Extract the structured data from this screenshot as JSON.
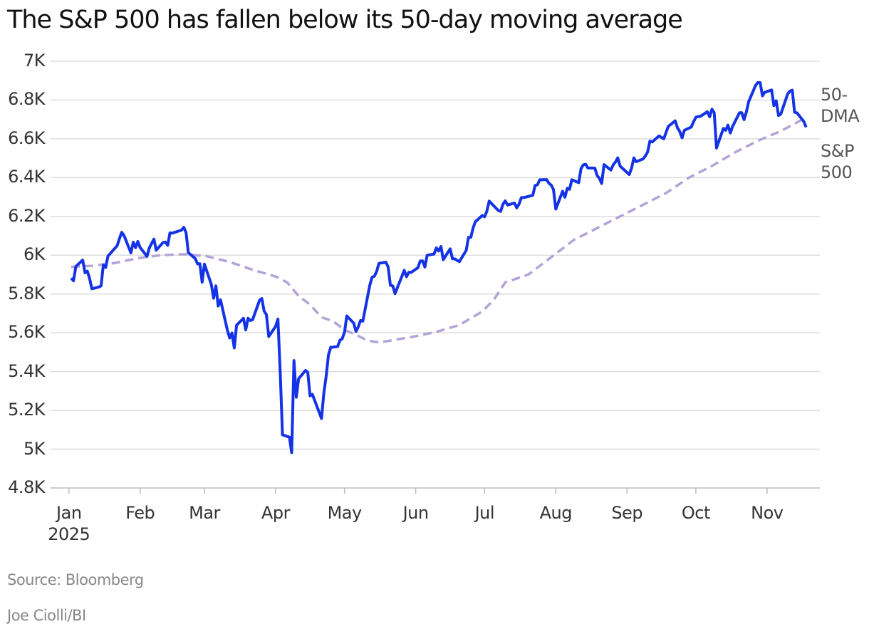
{
  "chart_data": {
    "type": "line",
    "title": "The S&P 500 has fallen below its 50-day moving average",
    "source": "Source: Bloomberg",
    "credit": "Joe Ciolli/BI",
    "xlim": [
      -8,
      327
    ],
    "xticks": [
      {
        "value": 0,
        "label": "Jan 2025"
      },
      {
        "value": 31,
        "label": "Feb"
      },
      {
        "value": 59,
        "label": "Mar"
      },
      {
        "value": 90,
        "label": "Apr"
      },
      {
        "value": 120,
        "label": "May"
      },
      {
        "value": 151,
        "label": "Jun"
      },
      {
        "value": 181,
        "label": "Jul"
      },
      {
        "value": 212,
        "label": "Aug"
      },
      {
        "value": 243,
        "label": "Sep"
      },
      {
        "value": 273,
        "label": "Oct"
      },
      {
        "value": 304,
        "label": "Nov"
      }
    ],
    "ylim": [
      4800,
      7000
    ],
    "yticks": [
      {
        "value": 4800,
        "label": "4.8K"
      },
      {
        "value": 5000,
        "label": "5K"
      },
      {
        "value": 5200,
        "label": "5.2K"
      },
      {
        "value": 5400,
        "label": "5.4K"
      },
      {
        "value": 5600,
        "label": "5.6K"
      },
      {
        "value": 5800,
        "label": "5.8K"
      },
      {
        "value": 6000,
        "label": "6K"
      },
      {
        "value": 6200,
        "label": "6.2K"
      },
      {
        "value": 6400,
        "label": "6.4K"
      },
      {
        "value": 6600,
        "label": "6.6K"
      },
      {
        "value": 6800,
        "label": "6.8K"
      },
      {
        "value": 7000,
        "label": "7K"
      }
    ],
    "grid": true,
    "series": [
      {
        "name": "50-DMA",
        "color": "#b3a3d6",
        "dashed": true,
        "x": [
          1,
          10,
          20,
          30,
          40,
          50,
          60,
          70,
          80,
          90,
          95,
          100,
          105,
          110,
          115,
          120,
          125,
          130,
          135,
          140,
          150,
          160,
          170,
          180,
          185,
          190,
          200,
          210,
          220,
          230,
          240,
          250,
          260,
          270,
          280,
          290,
          300,
          310,
          321
        ],
        "values": [
          5940,
          5945,
          5960,
          5985,
          6000,
          6005,
          5995,
          5965,
          5925,
          5890,
          5860,
          5790,
          5745,
          5680,
          5660,
          5615,
          5590,
          5560,
          5550,
          5560,
          5580,
          5605,
          5640,
          5710,
          5770,
          5860,
          5900,
          5990,
          6080,
          6140,
          6200,
          6260,
          6320,
          6400,
          6460,
          6530,
          6590,
          6640,
          6710
        ]
      },
      {
        "name": "S&P 500",
        "color": "#1432e6",
        "dashed": false,
        "x": [
          1,
          2,
          3,
          6,
          7,
          8,
          9,
          10,
          13,
          14,
          15,
          16,
          17,
          21,
          22,
          23,
          24,
          27,
          28,
          29,
          30,
          31,
          34,
          35,
          36,
          37,
          38,
          41,
          42,
          43,
          44,
          45,
          49,
          50,
          51,
          52,
          55,
          56,
          57,
          58,
          59,
          62,
          63,
          64,
          65,
          66,
          69,
          70,
          71,
          72,
          73,
          76,
          77,
          78,
          79,
          80,
          83,
          84,
          85,
          86,
          87,
          90,
          91,
          92,
          93,
          96,
          97,
          98,
          99,
          100,
          103,
          104,
          105,
          106,
          110,
          111,
          112,
          113,
          114,
          117,
          118,
          119,
          120,
          121,
          124,
          125,
          126,
          127,
          128,
          131,
          132,
          133,
          134,
          135,
          138,
          139,
          140,
          141,
          142,
          146,
          147,
          148,
          149,
          152,
          153,
          154,
          155,
          156,
          159,
          160,
          161,
          162,
          163,
          166,
          167,
          168,
          170,
          173,
          174,
          175,
          176,
          177,
          180,
          181,
          182,
          183,
          187,
          188,
          189,
          190,
          191,
          194,
          195,
          196,
          197,
          198,
          201,
          202,
          203,
          204,
          205,
          208,
          209,
          210,
          211,
          212,
          215,
          216,
          217,
          218,
          219,
          222,
          223,
          224,
          225,
          226,
          229,
          230,
          231,
          232,
          233,
          236,
          237,
          238,
          239,
          240,
          244,
          245,
          246,
          247,
          250,
          251,
          252,
          253,
          254,
          257,
          258,
          259,
          260,
          261,
          264,
          265,
          266,
          267,
          268,
          271,
          272,
          273,
          274,
          275,
          278,
          279,
          280,
          281,
          282,
          285,
          286,
          287,
          288,
          289,
          292,
          293,
          294,
          295,
          296,
          299,
          300,
          301,
          302,
          303,
          306,
          307,
          308,
          309,
          310,
          313,
          314,
          315,
          316,
          317,
          320,
          321
        ],
        "values": [
          5882,
          5868,
          5942,
          5975,
          5909,
          5918,
          5880,
          5827,
          5836,
          5842,
          5950,
          5937,
          5996,
          6049,
          6086,
          6118,
          6101,
          6012,
          6067,
          6039,
          6071,
          6040,
          5994,
          6037,
          6061,
          6083,
          6026,
          6066,
          6068,
          6051,
          6115,
          6114,
          6129,
          6144,
          6117,
          6013,
          5983,
          5955,
          5956,
          5861,
          5954,
          5849,
          5778,
          5842,
          5738,
          5770,
          5614,
          5573,
          5599,
          5522,
          5639,
          5675,
          5615,
          5675,
          5663,
          5668,
          5768,
          5777,
          5712,
          5694,
          5581,
          5633,
          5671,
          5396,
          5074,
          5062,
          4982,
          5457,
          5268,
          5363,
          5406,
          5396,
          5275,
          5283,
          5158,
          5288,
          5376,
          5485,
          5525,
          5529,
          5561,
          5569,
          5604,
          5687,
          5650,
          5607,
          5631,
          5664,
          5660,
          5844,
          5886,
          5892,
          5916,
          5958,
          5964,
          5940,
          5845,
          5842,
          5802,
          5922,
          5889,
          5912,
          5911,
          5936,
          5970,
          5971,
          5939,
          6000,
          6006,
          6038,
          6022,
          6045,
          5977,
          6033,
          5982,
          5981,
          5967,
          6025,
          6092,
          6092,
          6141,
          6173,
          6205,
          6198,
          6227,
          6279,
          6230,
          6226,
          6263,
          6280,
          6259,
          6269,
          6244,
          6264,
          6297,
          6297,
          6306,
          6309,
          6359,
          6363,
          6389,
          6390,
          6371,
          6362,
          6339,
          6238,
          6330,
          6299,
          6345,
          6340,
          6389,
          6374,
          6446,
          6466,
          6469,
          6450,
          6449,
          6411,
          6396,
          6370,
          6467,
          6439,
          6466,
          6481,
          6502,
          6460,
          6416,
          6448,
          6502,
          6482,
          6496,
          6512,
          6532,
          6588,
          6584,
          6615,
          6607,
          6600,
          6632,
          6664,
          6693,
          6657,
          6638,
          6605,
          6644,
          6661,
          6688,
          6711,
          6715,
          6716,
          6740,
          6714,
          6753,
          6735,
          6553,
          6654,
          6644,
          6671,
          6630,
          6664,
          6735,
          6735,
          6699,
          6738,
          6792,
          6875,
          6891,
          6890,
          6822,
          6840,
          6852,
          6771,
          6796,
          6720,
          6728,
          6832,
          6846,
          6851,
          6737,
          6734,
          6690,
          6660
        ]
      }
    ]
  }
}
